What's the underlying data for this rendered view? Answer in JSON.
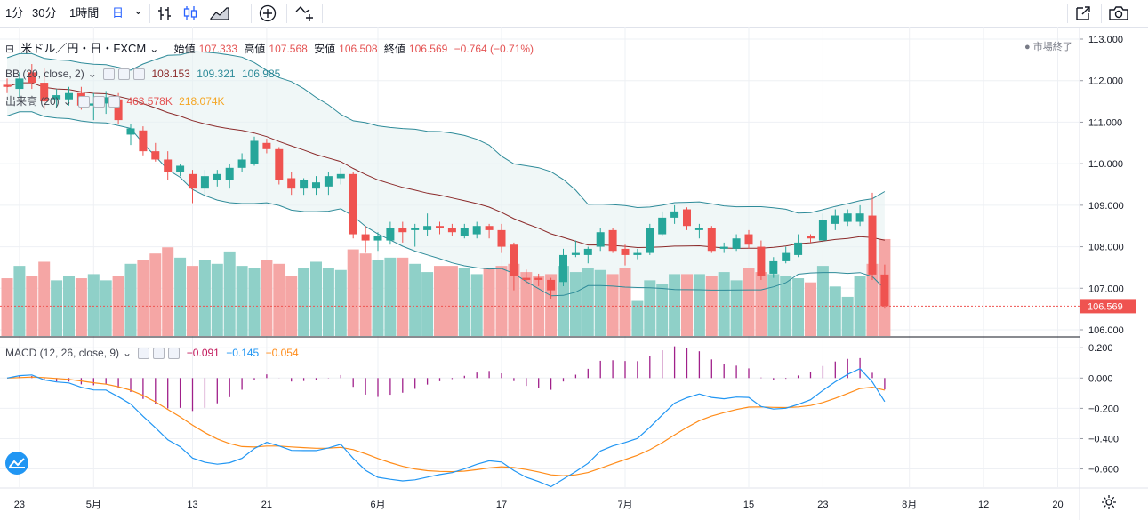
{
  "toolbar": {
    "interval_1m": "1分",
    "interval_30m": "30分",
    "interval_1h": "1時間",
    "interval_day": "日",
    "chevron": "⌄"
  },
  "symbol": {
    "name": "米ドル／円・日・FXCM",
    "open_label": "始値",
    "open": "107.333",
    "high_label": "高値",
    "high": "107.568",
    "low_label": "安値",
    "low": "106.508",
    "close_label": "終値",
    "close": "106.569",
    "change": "−0.764 (−0.71%)"
  },
  "market_status": "● 市場終了",
  "indicators": {
    "bb": {
      "label": "BB (20, close, 2)",
      "basis": "108.153",
      "upper": "109.321",
      "lower": "106.985"
    },
    "volume": {
      "label": "出来高 (20)",
      "value": "463.578K",
      "ma": "218.074K"
    },
    "macd": {
      "label": "MACD (12, 26, close, 9)",
      "hist": "−0.091",
      "macd": "−0.145",
      "signal": "−0.054"
    }
  },
  "last_price": "106.569",
  "price_axis": [
    "113.000",
    "112.000",
    "111.000",
    "110.000",
    "109.000",
    "108.000",
    "107.000",
    "106.000"
  ],
  "macd_axis": [
    "0.200",
    "0.000",
    "−0.200",
    "−0.400",
    "−0.600"
  ],
  "time_axis": [
    "23",
    "5月",
    "13",
    "21",
    "6月",
    "17",
    "7月",
    "15",
    "23",
    "8月",
    "12",
    "20"
  ],
  "colors": {
    "up": "#26a69a",
    "down": "#ef5350",
    "bb_band": "#2e8b99",
    "bb_basis": "#8b2a2a",
    "macd": "#2196f3",
    "signal": "#ff8c1a",
    "hist": "#a0208a"
  },
  "chart_data": {
    "type": "candlestick",
    "title": "米ドル／円・日・FXCM",
    "ylim": [
      105.85,
      113.3
    ],
    "candles": [
      {
        "o": 111.9,
        "h": 112.05,
        "l": 111.7,
        "c": 111.85
      },
      {
        "o": 111.8,
        "h": 112.2,
        "l": 111.6,
        "c": 112.05
      },
      {
        "o": 112.2,
        "h": 112.4,
        "l": 111.8,
        "c": 111.95
      },
      {
        "o": 111.95,
        "h": 112.3,
        "l": 111.3,
        "c": 111.5
      },
      {
        "o": 111.55,
        "h": 111.8,
        "l": 111.35,
        "c": 111.65
      },
      {
        "o": 111.55,
        "h": 111.85,
        "l": 111.4,
        "c": 111.7
      },
      {
        "o": 111.7,
        "h": 111.85,
        "l": 111.3,
        "c": 111.4
      },
      {
        "o": 111.4,
        "h": 111.7,
        "l": 111.05,
        "c": 111.45
      },
      {
        "o": 111.45,
        "h": 111.75,
        "l": 111.2,
        "c": 111.6
      },
      {
        "o": 111.55,
        "h": 111.7,
        "l": 110.95,
        "c": 111.05
      },
      {
        "o": 110.7,
        "h": 110.95,
        "l": 110.45,
        "c": 110.85
      },
      {
        "o": 110.8,
        "h": 110.9,
        "l": 110.2,
        "c": 110.3
      },
      {
        "o": 110.3,
        "h": 110.5,
        "l": 110.05,
        "c": 110.1
      },
      {
        "o": 110.1,
        "h": 110.3,
        "l": 109.6,
        "c": 109.8
      },
      {
        "o": 109.8,
        "h": 110.0,
        "l": 109.7,
        "c": 109.95
      },
      {
        "o": 109.75,
        "h": 109.85,
        "l": 109.05,
        "c": 109.4
      },
      {
        "o": 109.4,
        "h": 109.85,
        "l": 109.2,
        "c": 109.7
      },
      {
        "o": 109.6,
        "h": 109.85,
        "l": 109.45,
        "c": 109.75
      },
      {
        "o": 109.6,
        "h": 110.0,
        "l": 109.4,
        "c": 109.9
      },
      {
        "o": 109.9,
        "h": 110.25,
        "l": 109.8,
        "c": 110.1
      },
      {
        "o": 110.0,
        "h": 110.65,
        "l": 109.95,
        "c": 110.55
      },
      {
        "o": 110.5,
        "h": 110.6,
        "l": 110.25,
        "c": 110.35
      },
      {
        "o": 110.35,
        "h": 110.4,
        "l": 109.5,
        "c": 109.6
      },
      {
        "o": 109.65,
        "h": 109.8,
        "l": 109.25,
        "c": 109.4
      },
      {
        "o": 109.4,
        "h": 109.65,
        "l": 109.25,
        "c": 109.6
      },
      {
        "o": 109.4,
        "h": 109.7,
        "l": 109.25,
        "c": 109.55
      },
      {
        "o": 109.45,
        "h": 109.8,
        "l": 109.25,
        "c": 109.7
      },
      {
        "o": 109.65,
        "h": 109.9,
        "l": 109.5,
        "c": 109.75
      },
      {
        "o": 109.75,
        "h": 109.8,
        "l": 108.2,
        "c": 108.3
      },
      {
        "o": 108.3,
        "h": 108.5,
        "l": 107.85,
        "c": 108.15
      },
      {
        "o": 108.15,
        "h": 108.35,
        "l": 107.9,
        "c": 108.25
      },
      {
        "o": 108.15,
        "h": 108.6,
        "l": 108.05,
        "c": 108.45
      },
      {
        "o": 108.45,
        "h": 108.6,
        "l": 108.1,
        "c": 108.35
      },
      {
        "o": 108.4,
        "h": 108.55,
        "l": 108.0,
        "c": 108.45
      },
      {
        "o": 108.4,
        "h": 108.8,
        "l": 108.25,
        "c": 108.5
      },
      {
        "o": 108.5,
        "h": 108.6,
        "l": 108.3,
        "c": 108.45
      },
      {
        "o": 108.45,
        "h": 108.55,
        "l": 108.25,
        "c": 108.35
      },
      {
        "o": 108.25,
        "h": 108.55,
        "l": 108.2,
        "c": 108.45
      },
      {
        "o": 108.3,
        "h": 108.6,
        "l": 108.2,
        "c": 108.5
      },
      {
        "o": 108.5,
        "h": 108.55,
        "l": 108.2,
        "c": 108.4
      },
      {
        "o": 108.4,
        "h": 108.55,
        "l": 107.85,
        "c": 108.0
      },
      {
        "o": 108.05,
        "h": 108.1,
        "l": 106.95,
        "c": 107.3
      },
      {
        "o": 107.25,
        "h": 107.45,
        "l": 107.1,
        "c": 107.2
      },
      {
        "o": 107.25,
        "h": 107.35,
        "l": 107.05,
        "c": 107.2
      },
      {
        "o": 107.2,
        "h": 107.25,
        "l": 106.75,
        "c": 106.95
      },
      {
        "o": 107.15,
        "h": 107.95,
        "l": 107.05,
        "c": 107.8
      },
      {
        "o": 107.8,
        "h": 108.15,
        "l": 107.75,
        "c": 107.85
      },
      {
        "o": 107.8,
        "h": 108.0,
        "l": 107.6,
        "c": 107.95
      },
      {
        "o": 108.0,
        "h": 108.45,
        "l": 107.9,
        "c": 108.35
      },
      {
        "o": 108.4,
        "h": 108.45,
        "l": 107.85,
        "c": 107.9
      },
      {
        "o": 107.95,
        "h": 108.05,
        "l": 107.55,
        "c": 107.8
      },
      {
        "o": 107.8,
        "h": 107.95,
        "l": 107.7,
        "c": 107.85
      },
      {
        "o": 107.85,
        "h": 108.55,
        "l": 107.8,
        "c": 108.45
      },
      {
        "o": 108.3,
        "h": 108.85,
        "l": 108.25,
        "c": 108.7
      },
      {
        "o": 108.7,
        "h": 109.0,
        "l": 108.55,
        "c": 108.85
      },
      {
        "o": 108.9,
        "h": 108.95,
        "l": 108.4,
        "c": 108.5
      },
      {
        "o": 108.4,
        "h": 108.55,
        "l": 108.2,
        "c": 108.45
      },
      {
        "o": 108.45,
        "h": 108.5,
        "l": 107.85,
        "c": 107.9
      },
      {
        "o": 107.95,
        "h": 108.1,
        "l": 107.85,
        "c": 108.0
      },
      {
        "o": 107.95,
        "h": 108.3,
        "l": 107.9,
        "c": 108.2
      },
      {
        "o": 108.3,
        "h": 108.4,
        "l": 107.95,
        "c": 108.05
      },
      {
        "o": 108.0,
        "h": 108.15,
        "l": 107.2,
        "c": 107.3
      },
      {
        "o": 107.35,
        "h": 107.75,
        "l": 107.25,
        "c": 107.65
      },
      {
        "o": 107.65,
        "h": 108.0,
        "l": 107.6,
        "c": 107.85
      },
      {
        "o": 107.8,
        "h": 108.3,
        "l": 107.75,
        "c": 108.1
      },
      {
        "o": 108.25,
        "h": 108.3,
        "l": 108.1,
        "c": 108.2
      },
      {
        "o": 108.15,
        "h": 108.8,
        "l": 108.1,
        "c": 108.65
      },
      {
        "o": 108.55,
        "h": 108.9,
        "l": 108.4,
        "c": 108.75
      },
      {
        "o": 108.6,
        "h": 108.9,
        "l": 108.5,
        "c": 108.8
      },
      {
        "o": 108.6,
        "h": 109.0,
        "l": 108.5,
        "c": 108.8
      },
      {
        "o": 108.75,
        "h": 109.3,
        "l": 107.2,
        "c": 107.33
      },
      {
        "o": 107.33,
        "h": 107.57,
        "l": 106.51,
        "c": 106.57
      }
    ],
    "volume": [
      28,
      34,
      29,
      36,
      27,
      29,
      28,
      30,
      27,
      29,
      35,
      37,
      40,
      43,
      38,
      34,
      37,
      35,
      41,
      34,
      33,
      37,
      35,
      29,
      33,
      36,
      33,
      32,
      42,
      40,
      37,
      38,
      38,
      35,
      31,
      34,
      34,
      33,
      30,
      33,
      34,
      35,
      31,
      29,
      30,
      34,
      31,
      33,
      32,
      30,
      33,
      17,
      27,
      25,
      30,
      30,
      30,
      29,
      31,
      27,
      33,
      31,
      30,
      29,
      28,
      26,
      34,
      24,
      19,
      29,
      35,
      47
    ],
    "volume_ylim": [
      0,
      150
    ],
    "macd_ylim": [
      -0.72,
      0.26
    ]
  }
}
